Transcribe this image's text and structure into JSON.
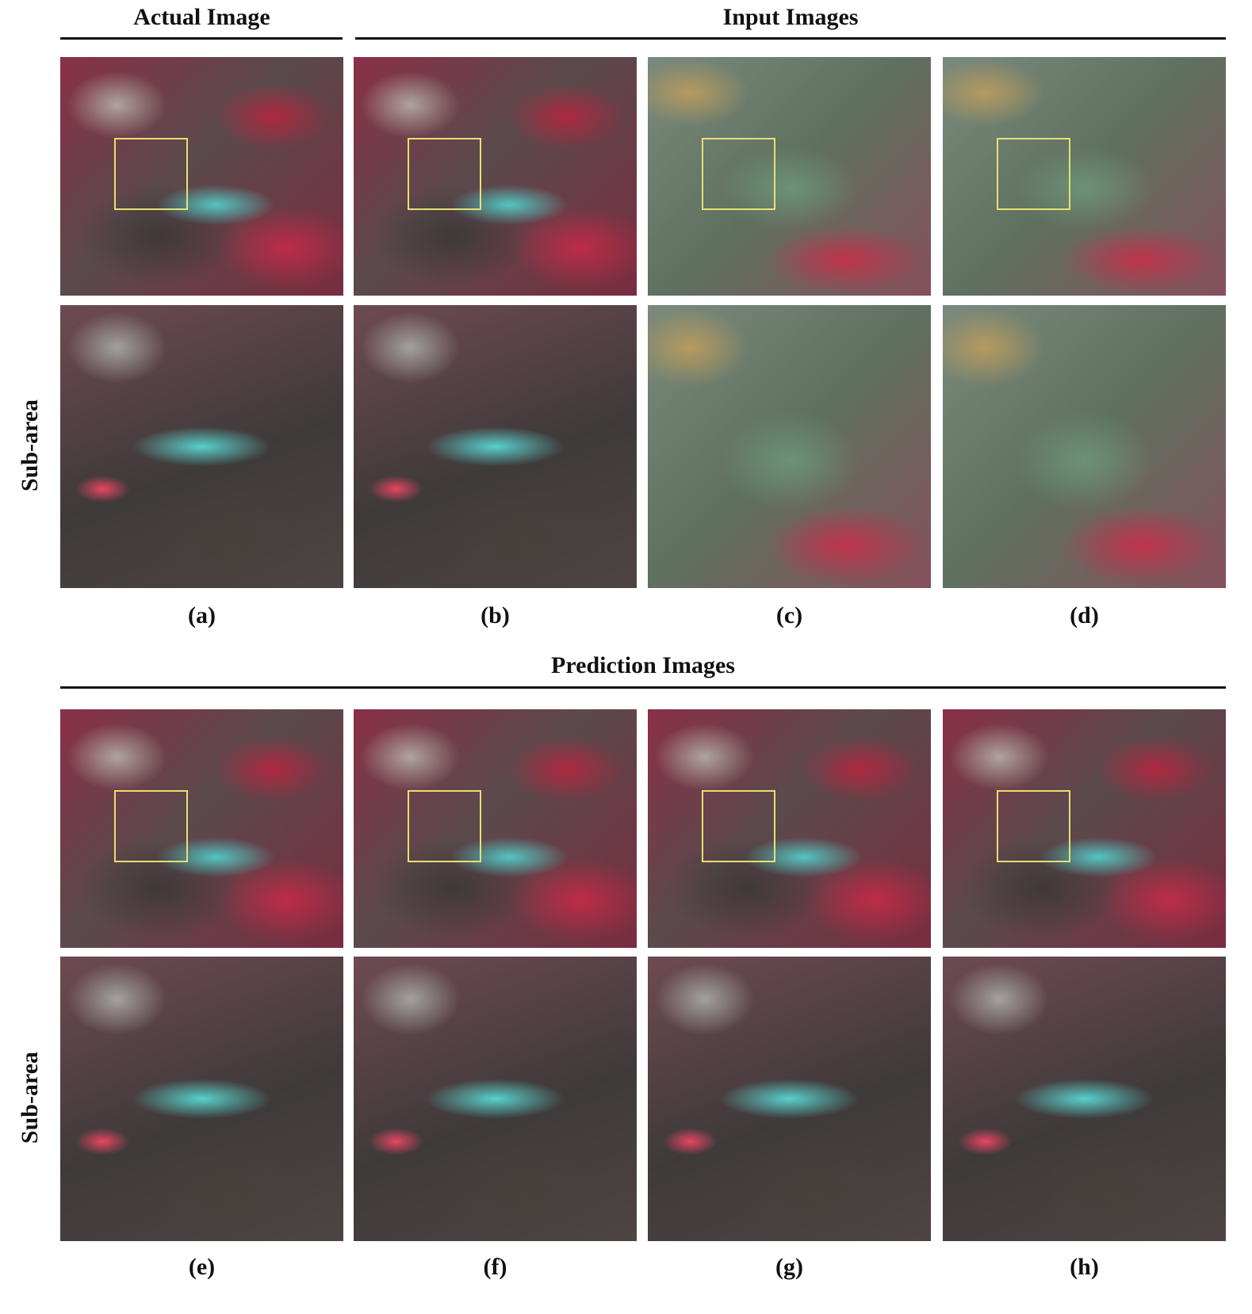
{
  "header": {
    "actual_image": "Actual Image",
    "input_images": "Input Images",
    "prediction_images": "Prediction Images"
  },
  "row_labels": [
    "Sub-area",
    "Sub-area"
  ],
  "panel_labels": [
    "(a)",
    "(b)",
    "(c)",
    "(d)",
    "(e)",
    "(f)",
    "(g)",
    "(h)"
  ]
}
